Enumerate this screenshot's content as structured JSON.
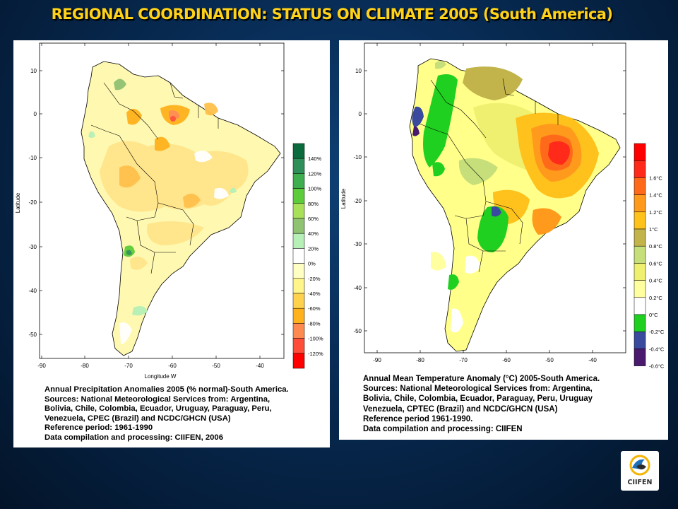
{
  "title": "REGIONAL COORDINATION: STATUS ON CLIMATE 2005 (South America)",
  "precip_map": {
    "caption": [
      "Annual Precipitation Anomalies 2005 (% normal)-South America.",
      "Sources: National Meteorological Services from: Argentina,",
      "Bolivia, Chile, Colombia, Ecuador, Uruguay, Paraguay, Peru,",
      "Venezuela, CPEC (Brazil) and NCDC/GHCN (USA)",
      "Reference period: 1961-1990",
      "Data compilation and processing: CIIFEN, 2006"
    ],
    "x_axis_title": "Longitude W",
    "y_axis_title": "Latitude",
    "x_ticks": [
      "-90",
      "-80",
      "-70",
      "-60",
      "-50",
      "-40"
    ],
    "y_ticks": [
      "10",
      "0",
      "-10",
      "-20",
      "-30",
      "-40",
      "-50"
    ],
    "legend": [
      {
        "label": "140%",
        "color": "#0b6b3c"
      },
      {
        "label": "120%",
        "color": "#2f8f58"
      },
      {
        "label": "100%",
        "color": "#3fae4f"
      },
      {
        "label": "80%",
        "color": "#5dcc3a"
      },
      {
        "label": "60%",
        "color": "#a9e05a"
      },
      {
        "label": "40%",
        "color": "#8fc271"
      },
      {
        "label": "20%",
        "color": "#b6f0b6"
      },
      {
        "label": "0%",
        "color": "#ffffff"
      },
      {
        "label": "-20%",
        "color": "#ffffc4"
      },
      {
        "label": "-40%",
        "color": "#fff58a"
      },
      {
        "label": "-60%",
        "color": "#ffd24d"
      },
      {
        "label": "-80%",
        "color": "#ffb21c"
      },
      {
        "label": "-100%",
        "color": "#ff8a4f"
      },
      {
        "label": "-120%",
        "color": "#ff4d3a"
      }
    ],
    "bottom_color": "#ff0000"
  },
  "temp_map": {
    "caption": [
      "Annual Mean Temperature Anomaly (°C) 2005-South America.",
      "Sources: National Meteorological Services from: Argentina,",
      "Bolivia, Chile, Colombia, Ecuador, Paraguay, Peru, Uruguay",
      "Venezuela, CPTEC (Brazil) and NCDC/GHCN (USA)",
      "Reference period 1961-1990.",
      "Data compilation and processing: CIIFEN"
    ],
    "y_axis_title": "Latitude",
    "x_ticks": [
      "-90",
      "-80",
      "-70",
      "-60",
      "-50",
      "-40"
    ],
    "y_ticks": [
      "10",
      "0",
      "-10",
      "-20",
      "-30",
      "-40",
      "-50"
    ],
    "legend": [
      {
        "label": "1.6°C",
        "color": "#ff2a1a"
      },
      {
        "label": "1.4°C",
        "color": "#ff6a1a"
      },
      {
        "label": "1.2°C",
        "color": "#ff9a1c"
      },
      {
        "label": "1°C",
        "color": "#ffc21c"
      },
      {
        "label": "0.8°C",
        "color": "#c2b44a"
      },
      {
        "label": "0.6°C",
        "color": "#c6df7a"
      },
      {
        "label": "0.4°C",
        "color": "#f0f070"
      },
      {
        "label": "0.2°C",
        "color": "#ffffa0"
      },
      {
        "label": "0°C",
        "color": "#ffffff"
      },
      {
        "label": "-0.2°C",
        "color": "#20d020"
      },
      {
        "label": "-0.4°C",
        "color": "#3a4a9e"
      },
      {
        "label": "-0.6°C",
        "color": "#4a1a6e"
      }
    ],
    "top_color": "#ff0000"
  },
  "logo": {
    "text": "CIIFEN"
  }
}
